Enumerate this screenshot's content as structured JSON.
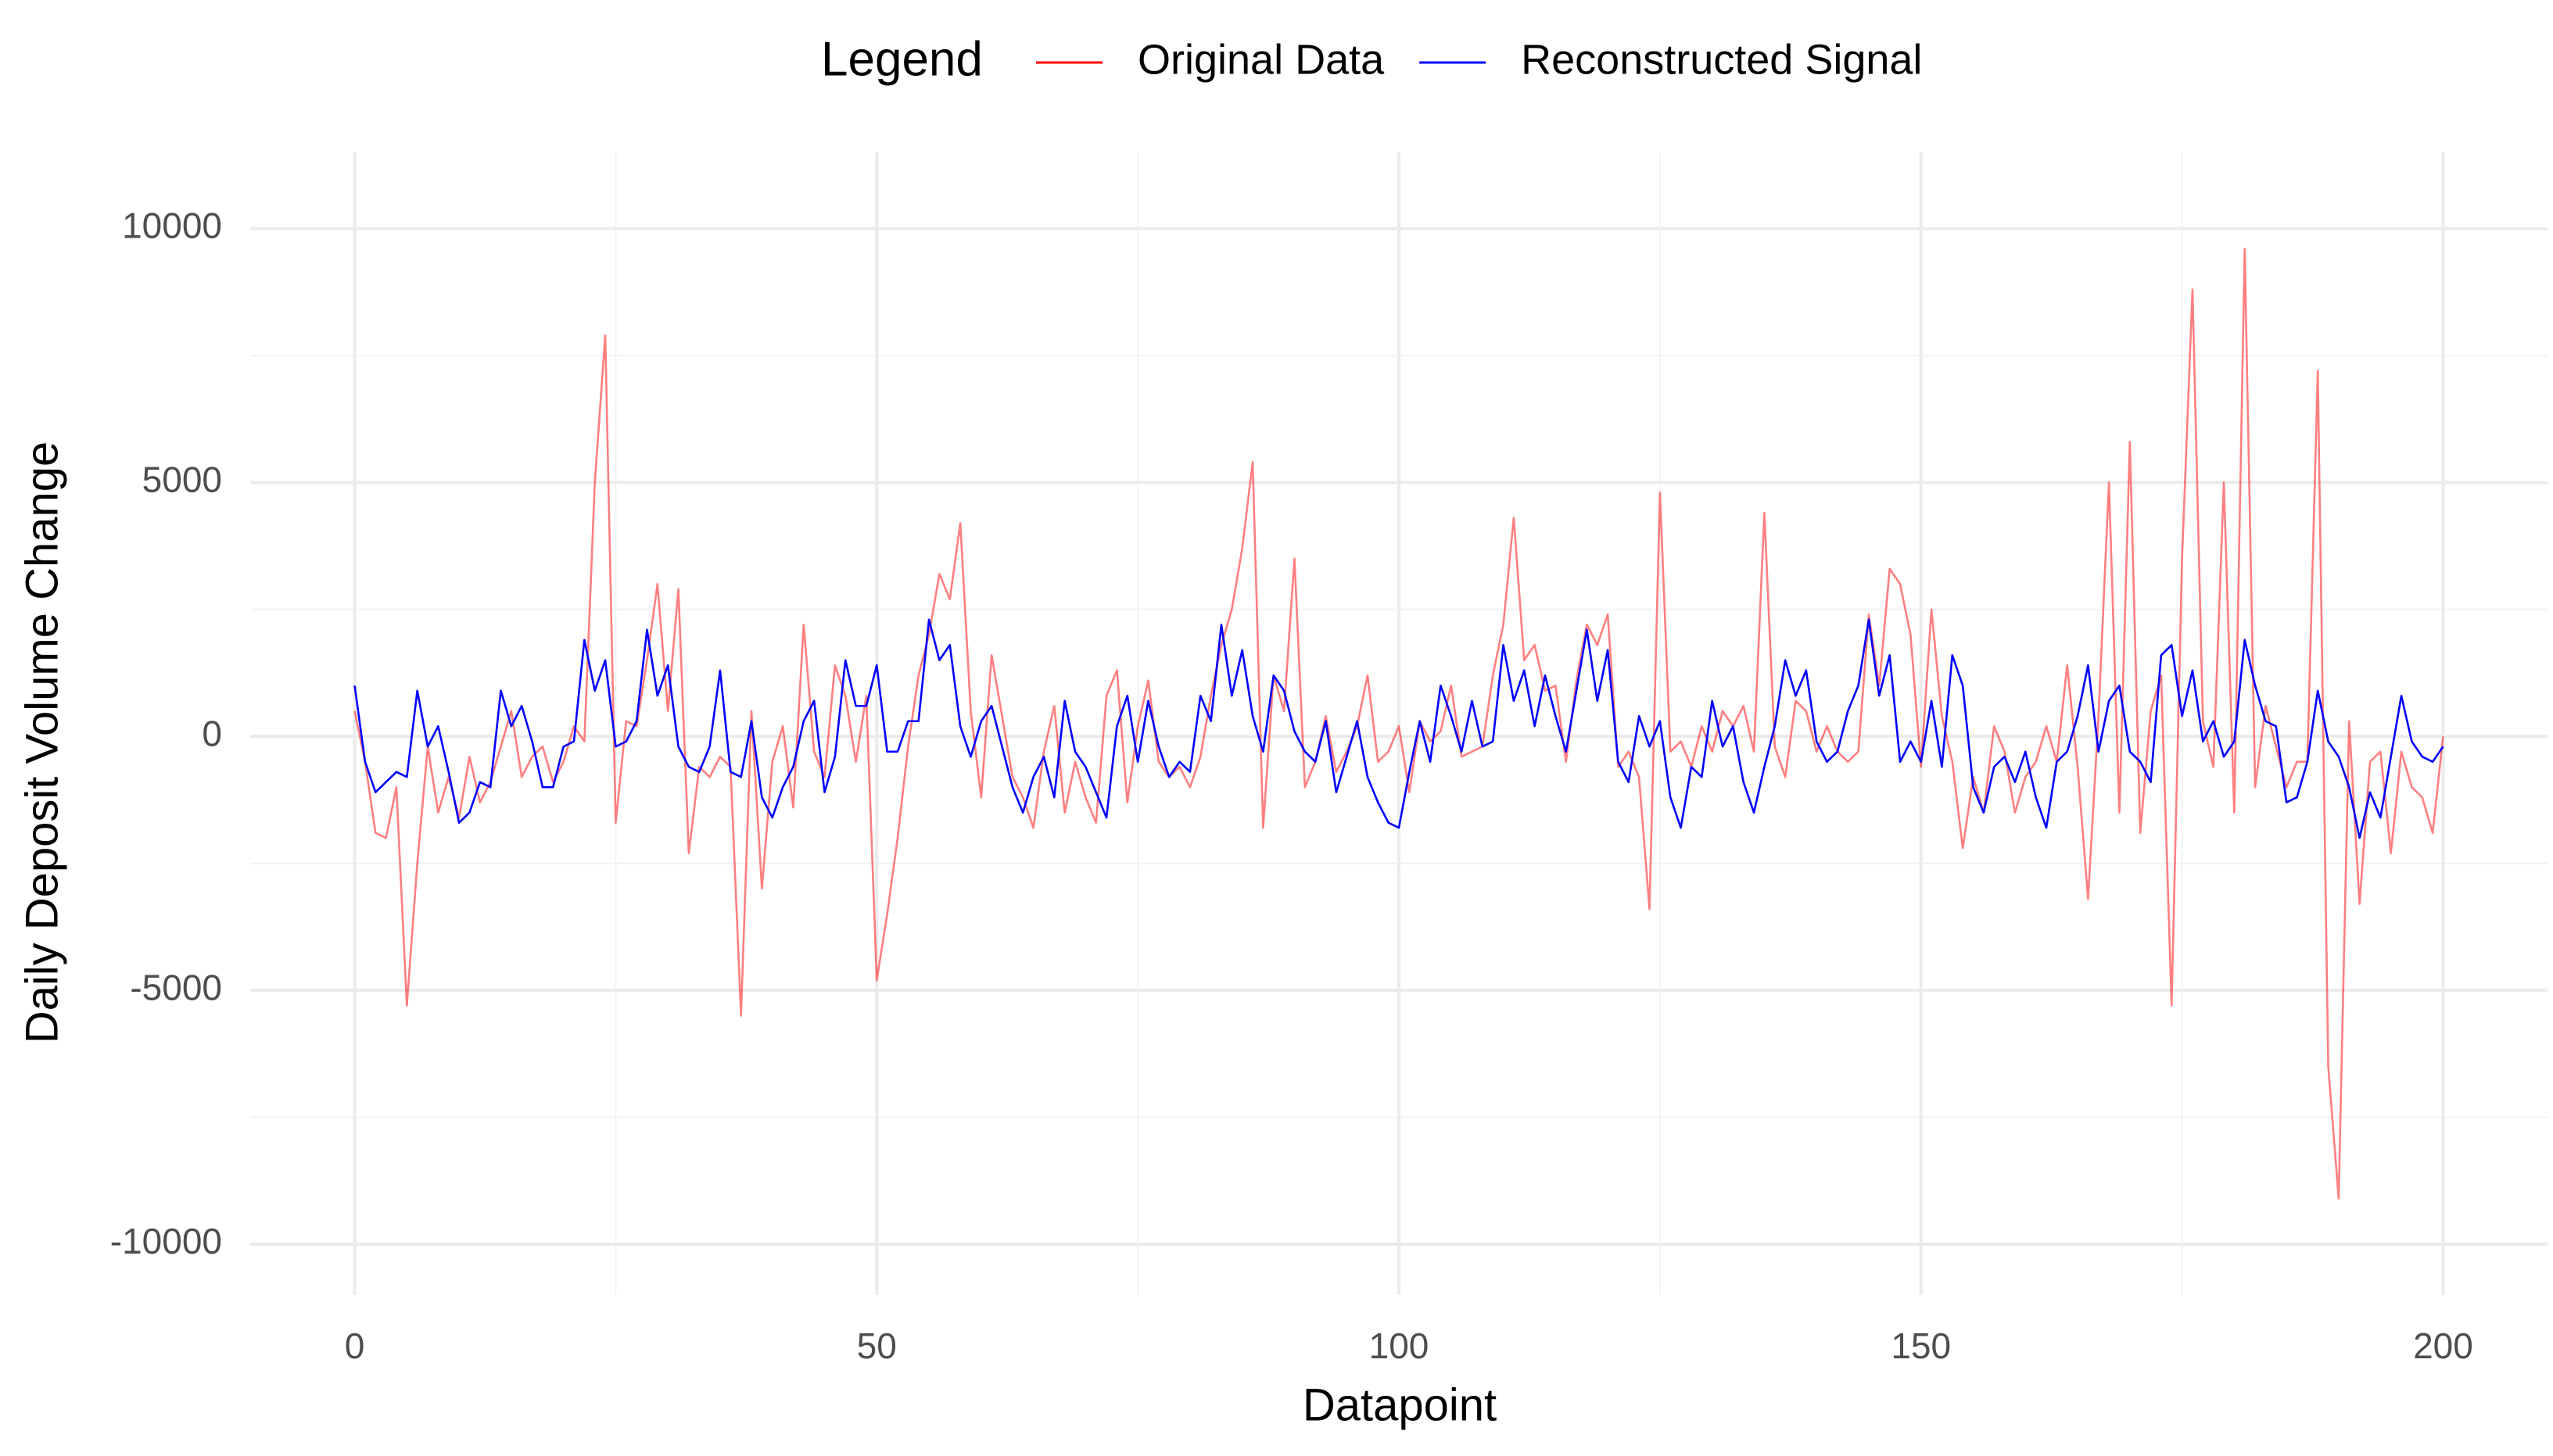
{
  "chart_data": {
    "type": "line",
    "x_label": "Datapoint",
    "y_label": "Daily Deposit Volume Change",
    "legend_title": "Legend",
    "legend_position": "top",
    "grid": true,
    "xlim": [
      -10,
      210
    ],
    "ylim": [
      -11000,
      11500
    ],
    "xticks": [
      0,
      50,
      100,
      150,
      200
    ],
    "yticks": [
      -10000,
      -5000,
      0,
      5000,
      10000
    ],
    "xminor": [
      25,
      75,
      125,
      175
    ],
    "yminor": [
      -7500,
      -2500,
      2500,
      7500
    ],
    "x": [
      0,
      1,
      2,
      3,
      4,
      5,
      6,
      7,
      8,
      9,
      10,
      11,
      12,
      13,
      14,
      15,
      16,
      17,
      18,
      19,
      20,
      21,
      22,
      23,
      24,
      25,
      26,
      27,
      28,
      29,
      30,
      31,
      32,
      33,
      34,
      35,
      36,
      37,
      38,
      39,
      40,
      41,
      42,
      43,
      44,
      45,
      46,
      47,
      48,
      49,
      50,
      51,
      52,
      53,
      54,
      55,
      56,
      57,
      58,
      59,
      60,
      61,
      62,
      63,
      64,
      65,
      66,
      67,
      68,
      69,
      70,
      71,
      72,
      73,
      74,
      75,
      76,
      77,
      78,
      79,
      80,
      81,
      82,
      83,
      84,
      85,
      86,
      87,
      88,
      89,
      90,
      91,
      92,
      93,
      94,
      95,
      96,
      97,
      98,
      99,
      100,
      101,
      102,
      103,
      104,
      105,
      106,
      107,
      108,
      109,
      110,
      111,
      112,
      113,
      114,
      115,
      116,
      117,
      118,
      119,
      120,
      121,
      122,
      123,
      124,
      125,
      126,
      127,
      128,
      129,
      130,
      131,
      132,
      133,
      134,
      135,
      136,
      137,
      138,
      139,
      140,
      141,
      142,
      143,
      144,
      145,
      146,
      147,
      148,
      149,
      150,
      151,
      152,
      153,
      154,
      155,
      156,
      157,
      158,
      159,
      160,
      161,
      162,
      163,
      164,
      165,
      166,
      167,
      168,
      169,
      170,
      171,
      172,
      173,
      174,
      175,
      176,
      177,
      178,
      179,
      180,
      181,
      182,
      183,
      184,
      185,
      186,
      187,
      188,
      189,
      190,
      191,
      192,
      193,
      194,
      195,
      196,
      197,
      198,
      199,
      200
    ],
    "series": [
      {
        "name": "Original Data",
        "color": "#ff0000",
        "alpha": 0.5,
        "values": [
          500,
          -500,
          -1900,
          -2000,
          -1000,
          -5300,
          -2500,
          -200,
          -1500,
          -800,
          -1600,
          -400,
          -1300,
          -900,
          -200,
          500,
          -800,
          -400,
          -200,
          -900,
          -500,
          200,
          -100,
          5000,
          7900,
          -1700,
          300,
          200,
          1500,
          3000,
          500,
          2900,
          -2300,
          -600,
          -800,
          -400,
          -600,
          -5500,
          500,
          -3000,
          -500,
          200,
          -1400,
          2200,
          -300,
          -800,
          1400,
          800,
          -500,
          800,
          -4800,
          -3500,
          -2000,
          -200,
          1200,
          2000,
          3200,
          2700,
          4200,
          500,
          -1200,
          1600,
          400,
          -800,
          -1200,
          -1800,
          -300,
          600,
          -1500,
          -500,
          -1200,
          -1700,
          800,
          1300,
          -1300,
          200,
          1100,
          -500,
          -800,
          -600,
          -1000,
          -400,
          800,
          1800,
          2500,
          3700,
          5400,
          -1800,
          1200,
          500,
          3500,
          -1000,
          -500,
          400,
          -700,
          -300,
          200,
          1200,
          -500,
          -300,
          200,
          -1100,
          300,
          -100,
          100,
          1000,
          -400,
          -300,
          -200,
          1200,
          2200,
          4300,
          1500,
          1800,
          900,
          1000,
          -500,
          1100,
          2200,
          1800,
          2400,
          -600,
          -300,
          -800,
          -3400,
          4800,
          -300,
          -100,
          -600,
          200,
          -300,
          500,
          200,
          600,
          -300,
          4400,
          -200,
          -800,
          700,
          500,
          -300,
          200,
          -300,
          -500,
          -300,
          2400,
          1000,
          3300,
          3000,
          2000,
          -600,
          2500,
          400,
          -500,
          -2200,
          -800,
          -1500,
          200,
          -300,
          -1500,
          -800,
          -500,
          200,
          -500,
          1400,
          -600,
          -3200,
          400,
          5000,
          -1500,
          5800,
          -1900,
          500,
          1200,
          -5300,
          3500,
          8800,
          300,
          -600,
          5000,
          -1500,
          9600,
          -1000,
          600,
          -200,
          -1000,
          -500,
          -500,
          7200,
          -6500,
          -9100,
          300,
          -3300,
          -500,
          -300,
          -2300,
          -300,
          -1000,
          -1200,
          -1900,
          0
        ]
      },
      {
        "name": "Reconstructed Signal",
        "color": "#0000ff",
        "alpha": 1,
        "values": [
          1000,
          -500,
          -1100,
          -900,
          -700,
          -800,
          900,
          -200,
          200,
          -700,
          -1700,
          -1500,
          -900,
          -1000,
          900,
          200,
          600,
          -100,
          -1000,
          -1000,
          -200,
          -100,
          1900,
          900,
          1500,
          -200,
          -100,
          300,
          2100,
          800,
          1400,
          -200,
          -600,
          -700,
          -200,
          1300,
          -700,
          -800,
          300,
          -1200,
          -1600,
          -1000,
          -600,
          300,
          700,
          -1100,
          -400,
          1500,
          600,
          600,
          1400,
          -300,
          -300,
          300,
          300,
          2300,
          1500,
          1800,
          200,
          -400,
          300,
          600,
          -200,
          -1000,
          -1500,
          -800,
          -400,
          -1200,
          700,
          -300,
          -600,
          -1100,
          -1600,
          200,
          800,
          -500,
          700,
          -200,
          -800,
          -500,
          -700,
          800,
          300,
          2200,
          800,
          1700,
          400,
          -300,
          1200,
          900,
          100,
          -300,
          -500,
          300,
          -1100,
          -400,
          300,
          -800,
          -1300,
          -1700,
          -1800,
          -700,
          300,
          -500,
          1000,
          400,
          -300,
          700,
          -200,
          -100,
          1800,
          700,
          1300,
          200,
          1200,
          400,
          -300,
          900,
          2100,
          700,
          1700,
          -500,
          -900,
          400,
          -200,
          300,
          -1200,
          -1800,
          -600,
          -800,
          700,
          -200,
          200,
          -900,
          -1500,
          -600,
          200,
          1500,
          800,
          1300,
          -100,
          -500,
          -300,
          500,
          1000,
          2300,
          800,
          1600,
          -500,
          -100,
          -500,
          700,
          -600,
          1600,
          1000,
          -1000,
          -1500,
          -600,
          -400,
          -900,
          -300,
          -1200,
          -1800,
          -500,
          -300,
          400,
          1400,
          -300,
          700,
          1000,
          -300,
          -500,
          -900,
          1600,
          1800,
          400,
          1300,
          -100,
          300,
          -400,
          -100,
          1900,
          1000,
          300,
          200,
          -1300,
          -1200,
          -500,
          900,
          -100,
          -400,
          -1000,
          -2000,
          -1100,
          -1600,
          -400,
          800,
          -100,
          -400,
          -500,
          -200
        ]
      }
    ]
  }
}
